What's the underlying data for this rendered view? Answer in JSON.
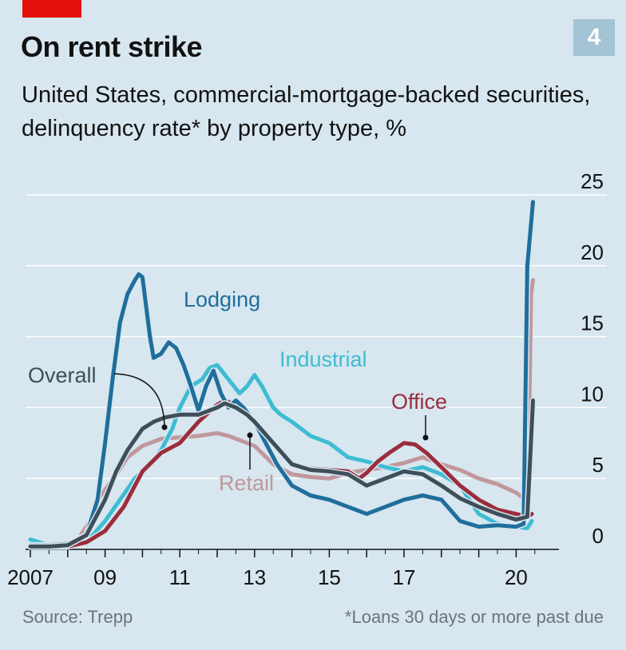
{
  "header": {
    "title": "On rent strike",
    "subtitle": "United States, commercial-mortgage-backed securities, delinquency rate* by property type, %",
    "badge": "4"
  },
  "footer": {
    "source": "Source: Trepp",
    "note": "*Loans 30 days or more past due"
  },
  "colors": {
    "background": "#d7e6ef",
    "grid": "#ffffff",
    "brand": "#e3120b"
  },
  "chart_data": {
    "type": "line",
    "title": "On rent strike",
    "ylim": [
      0,
      25
    ],
    "y_ticks": [
      0,
      5,
      10,
      15,
      20,
      25
    ],
    "y_tick_labels": [
      "0",
      "5",
      "10",
      "15",
      "20",
      "25"
    ],
    "xlim": [
      2007,
      2020.8
    ],
    "x_ticks": [
      2007,
      2009,
      2011,
      2013,
      2015,
      2017,
      2020
    ],
    "x_tick_labels": [
      "2007",
      "09",
      "11",
      "13",
      "15",
      "17",
      "20"
    ],
    "grid": true,
    "y_axis_side": "right",
    "series": [
      {
        "name": "Retail",
        "color": "#c1979c",
        "x": [
          2007.0,
          2007.5,
          2008.0,
          2008.3,
          2008.6,
          2008.8,
          2009.0,
          2009.3,
          2009.6,
          2010.0,
          2010.5,
          2011.0,
          2011.5,
          2012.0,
          2012.3,
          2012.6,
          2013.0,
          2013.5,
          2014.0,
          2014.5,
          2015.0,
          2015.5,
          2016.0,
          2016.5,
          2017.0,
          2017.5,
          2018.0,
          2018.5,
          2019.0,
          2019.5,
          2020.0,
          2020.2,
          2020.32,
          2020.4,
          2020.45
        ],
        "y": [
          0.3,
          0.3,
          0.4,
          0.8,
          2.0,
          3.5,
          4.2,
          5.3,
          6.5,
          7.3,
          7.8,
          7.9,
          8.0,
          8.2,
          8.0,
          7.7,
          7.3,
          6.0,
          5.3,
          5.1,
          5.0,
          5.4,
          5.6,
          5.8,
          6.1,
          6.5,
          6.0,
          5.6,
          5.0,
          4.6,
          4.0,
          3.6,
          4.0,
          18.0,
          19.0
        ]
      },
      {
        "name": "Industrial",
        "color": "#3ebcd2",
        "x": [
          2007.0,
          2007.5,
          2008.0,
          2008.5,
          2009.0,
          2009.4,
          2009.8,
          2010.2,
          2010.5,
          2010.8,
          2011.0,
          2011.3,
          2011.6,
          2011.8,
          2012.0,
          2012.3,
          2012.6,
          2012.8,
          2013.0,
          2013.2,
          2013.5,
          2013.7,
          2014.0,
          2014.5,
          2015.0,
          2015.5,
          2016.0,
          2016.5,
          2017.0,
          2017.5,
          2018.0,
          2018.5,
          2019.0,
          2019.5,
          2020.0,
          2020.3,
          2020.42
        ],
        "y": [
          0.7,
          0.3,
          0.3,
          0.5,
          2.0,
          3.5,
          5.0,
          6.0,
          7.0,
          8.5,
          10.0,
          11.5,
          12.0,
          12.8,
          13.0,
          12.0,
          11.0,
          11.5,
          12.3,
          11.5,
          10.0,
          9.5,
          9.0,
          8.0,
          7.5,
          6.5,
          6.2,
          5.8,
          5.5,
          5.8,
          5.3,
          4.5,
          2.5,
          1.8,
          1.6,
          1.5,
          2.0
        ]
      },
      {
        "name": "Office",
        "color": "#9b2d3c",
        "x": [
          2007.0,
          2007.5,
          2008.0,
          2008.5,
          2009.0,
          2009.5,
          2010.0,
          2010.5,
          2011.0,
          2011.5,
          2012.0,
          2012.2,
          2012.5,
          2012.8,
          2013.0,
          2013.5,
          2014.0,
          2014.5,
          2015.0,
          2015.5,
          2015.8,
          2016.0,
          2016.3,
          2016.6,
          2017.0,
          2017.3,
          2017.6,
          2018.0,
          2018.5,
          2019.0,
          2019.5,
          2020.0,
          2020.3,
          2020.42
        ],
        "y": [
          0.2,
          0.2,
          0.2,
          0.5,
          1.3,
          3.0,
          5.5,
          6.8,
          7.5,
          9.0,
          10.2,
          10.5,
          10.2,
          9.5,
          9.0,
          7.5,
          6.0,
          5.7,
          5.6,
          5.5,
          5.0,
          5.4,
          6.2,
          6.8,
          7.5,
          7.4,
          6.8,
          5.8,
          4.5,
          3.5,
          2.8,
          2.5,
          2.3,
          2.5
        ]
      },
      {
        "name": "Lodging",
        "color": "#1f6e9c",
        "x": [
          2007.0,
          2007.5,
          2008.0,
          2008.5,
          2008.8,
          2009.0,
          2009.2,
          2009.4,
          2009.6,
          2009.8,
          2009.9,
          2010.0,
          2010.2,
          2010.3,
          2010.5,
          2010.7,
          2010.9,
          2011.1,
          2011.3,
          2011.5,
          2011.7,
          2011.9,
          2012.1,
          2012.3,
          2012.5,
          2012.7,
          2013.0,
          2013.3,
          2013.6,
          2014.0,
          2014.5,
          2015.0,
          2015.5,
          2016.0,
          2016.5,
          2017.0,
          2017.5,
          2018.0,
          2018.5,
          2019.0,
          2019.5,
          2020.0,
          2020.2,
          2020.3,
          2020.45
        ],
        "y": [
          0.3,
          0.3,
          0.4,
          1.0,
          3.5,
          7.5,
          12.0,
          16.0,
          18.0,
          19.0,
          19.4,
          19.2,
          15.0,
          13.5,
          13.8,
          14.6,
          14.2,
          13.0,
          11.5,
          9.8,
          11.5,
          12.6,
          11.0,
          10.0,
          10.5,
          10.0,
          9.0,
          7.5,
          6.0,
          4.5,
          3.8,
          3.5,
          3.0,
          2.5,
          3.0,
          3.5,
          3.8,
          3.5,
          2.0,
          1.6,
          1.7,
          1.6,
          1.8,
          20.0,
          24.5
        ]
      },
      {
        "name": "Overall",
        "color": "#3f4f5a",
        "x": [
          2007.0,
          2007.5,
          2008.0,
          2008.5,
          2008.8,
          2009.0,
          2009.3,
          2009.6,
          2010.0,
          2010.3,
          2010.6,
          2011.0,
          2011.5,
          2012.0,
          2012.2,
          2012.5,
          2012.8,
          2013.0,
          2013.5,
          2014.0,
          2014.5,
          2015.0,
          2015.5,
          2016.0,
          2016.5,
          2017.0,
          2017.5,
          2018.0,
          2018.5,
          2019.0,
          2019.5,
          2020.0,
          2020.3,
          2020.45
        ],
        "y": [
          0.2,
          0.2,
          0.3,
          1.0,
          2.5,
          3.5,
          5.5,
          7.0,
          8.5,
          9.0,
          9.3,
          9.5,
          9.5,
          10.0,
          10.3,
          10.0,
          9.5,
          9.0,
          7.5,
          6.0,
          5.6,
          5.5,
          5.3,
          4.5,
          5.0,
          5.5,
          5.3,
          4.5,
          3.6,
          3.0,
          2.5,
          2.1,
          2.3,
          10.5
        ]
      }
    ],
    "labels": {
      "lodging": "Lodging",
      "industrial": "Industrial",
      "overall": "Overall",
      "office": "Office",
      "retail": "Retail"
    }
  }
}
